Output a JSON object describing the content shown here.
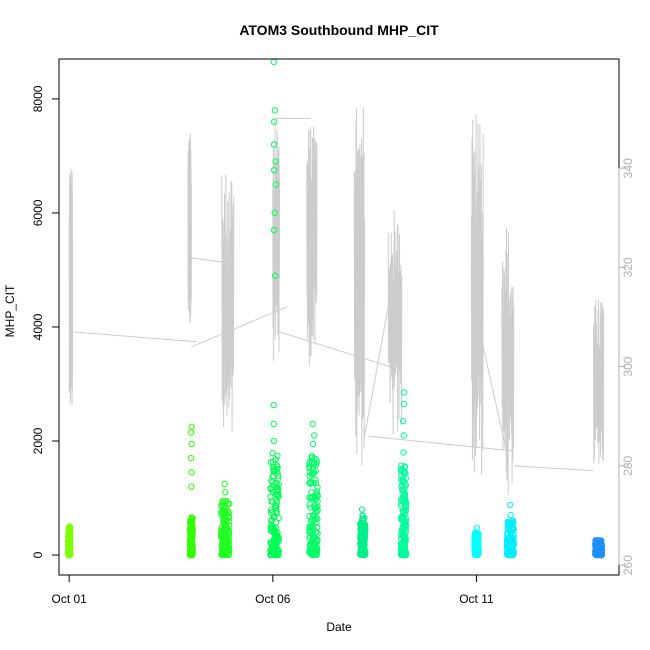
{
  "chart_data": {
    "type": "scatter",
    "title": "ATOM3 Southbound MHP_CIT",
    "xlabel": "Date",
    "ylabel": "MHP_CIT",
    "xlim": [
      "2013-09-30T18:00",
      "2013-10-14T12:00"
    ],
    "ylim": [
      -350,
      8700
    ],
    "y2lim": [
      258,
      362
    ],
    "x_ticks": [
      {
        "date": "2013-10-01T00:00",
        "label": "Oct 01"
      },
      {
        "date": "2013-10-06T00:00",
        "label": "Oct 06"
      },
      {
        "date": "2013-10-11T00:00",
        "label": "Oct 11"
      }
    ],
    "y_ticks": [
      0,
      2000,
      4000,
      6000,
      8000
    ],
    "y2_ticks": [
      260,
      280,
      300,
      320,
      340
    ],
    "colors": {
      "series_line": "#cccccc",
      "right_axis": "#b0b0b0",
      "axis": "#000000"
    },
    "clusters": [
      {
        "center": "2013-10-01T00:00",
        "halfwidth_h": 0.6,
        "low": 0,
        "high": 500,
        "color": "#7fff00",
        "outliers": []
      },
      {
        "center": "2013-10-04T00:00",
        "halfwidth_h": 0.8,
        "low": 0,
        "high": 700,
        "color": "#33ff00",
        "outliers": [
          1200,
          1450,
          1700,
          1950,
          2150,
          2250
        ]
      },
      {
        "center": "2013-10-04T20:00",
        "halfwidth_h": 2.5,
        "low": 0,
        "high": 1000,
        "color": "#22ff22",
        "outliers": [
          1100,
          1250
        ]
      },
      {
        "center": "2013-10-06T01:00",
        "halfwidth_h": 2.5,
        "low": 0,
        "high": 1800,
        "color": "#00ff55",
        "outliers": [
          2000,
          2300,
          2630,
          4900,
          5700,
          6000,
          6500,
          6750,
          6900,
          7200,
          7600,
          7800,
          8650
        ]
      },
      {
        "center": "2013-10-07T00:00",
        "halfwidth_h": 2.5,
        "low": 0,
        "high": 1800,
        "color": "#00ff66",
        "outliers": [
          1950,
          2100,
          2300
        ]
      },
      {
        "center": "2013-10-08T05:00",
        "halfwidth_h": 1.5,
        "low": 0,
        "high": 700,
        "color": "#00ee88",
        "outliers": [
          800
        ]
      },
      {
        "center": "2013-10-09T05:00",
        "halfwidth_h": 1.5,
        "low": 0,
        "high": 1600,
        "color": "#00ff99",
        "outliers": [
          1800,
          2100,
          2350,
          2650,
          2850
        ]
      },
      {
        "center": "2013-10-11T00:00",
        "halfwidth_h": 1.2,
        "low": 0,
        "high": 400,
        "color": "#00ffff",
        "outliers": [
          480
        ]
      },
      {
        "center": "2013-10-11T20:00",
        "halfwidth_h": 2.0,
        "low": 0,
        "high": 600,
        "color": "#00eeff",
        "outliers": [
          700,
          880
        ]
      },
      {
        "center": "2013-10-14T00:00",
        "halfwidth_h": 2.0,
        "low": 0,
        "high": 270,
        "color": "#1e90ff",
        "outliers": []
      }
    ],
    "right_series_bursts": [
      {
        "start": "2013-10-01T00:00",
        "end": "2013-10-01T02:00",
        "low": 289,
        "high": 342
      },
      {
        "start": "2013-10-03T22:00",
        "end": "2013-10-04T00:00",
        "low": 305,
        "high": 347
      },
      {
        "start": "2013-10-04T18:00",
        "end": "2013-10-05T01:00",
        "low": 282,
        "high": 339
      },
      {
        "start": "2013-10-06T00:00",
        "end": "2013-10-06T04:00",
        "low": 301,
        "high": 350
      },
      {
        "start": "2013-10-06T20:00",
        "end": "2013-10-07T02:00",
        "low": 300,
        "high": 350
      },
      {
        "start": "2013-10-08T00:00",
        "end": "2013-10-08T06:00",
        "low": 279,
        "high": 353
      },
      {
        "start": "2013-10-08T20:00",
        "end": "2013-10-09T04:00",
        "low": 285,
        "high": 332
      },
      {
        "start": "2013-10-10T21:00",
        "end": "2013-10-11T04:00",
        "low": 277,
        "high": 352
      },
      {
        "start": "2013-10-11T15:00",
        "end": "2013-10-11T22:00",
        "low": 274,
        "high": 329
      },
      {
        "start": "2013-10-13T21:00",
        "end": "2013-10-14T03:00",
        "low": 280,
        "high": 314
      }
    ],
    "right_series_connectors": [
      {
        "from": {
          "date": "2013-10-01T02:00",
          "value": 307
        },
        "to": {
          "date": "2013-10-04T03:00",
          "value": 305
        }
      },
      {
        "from": {
          "date": "2013-10-04T00:00",
          "value": 304
        },
        "to": {
          "date": "2013-10-06T08:00",
          "value": 312
        }
      },
      {
        "from": {
          "date": "2013-10-03T22:00",
          "value": 322
        },
        "to": {
          "date": "2013-10-04T20:00",
          "value": 321
        }
      },
      {
        "from": {
          "date": "2013-10-06T04:00",
          "value": 307
        },
        "to": {
          "date": "2013-10-08T21:00",
          "value": 300
        }
      },
      {
        "from": {
          "date": "2013-10-06T02:00",
          "value": 350
        },
        "to": {
          "date": "2013-10-06T22:00",
          "value": 350
        }
      },
      {
        "from": {
          "date": "2013-10-08T06:00",
          "value": 286
        },
        "to": {
          "date": "2013-10-08T20:00",
          "value": 312
        }
      },
      {
        "from": {
          "date": "2013-10-08T08:00",
          "value": 286
        },
        "to": {
          "date": "2013-10-11T22:00",
          "value": 283
        }
      },
      {
        "from": {
          "date": "2013-10-11T00:00",
          "value": 310
        },
        "to": {
          "date": "2013-10-11T19:00",
          "value": 281
        }
      },
      {
        "from": {
          "date": "2013-10-11T22:00",
          "value": 280
        },
        "to": {
          "date": "2013-10-13T21:00",
          "value": 279
        }
      }
    ]
  }
}
